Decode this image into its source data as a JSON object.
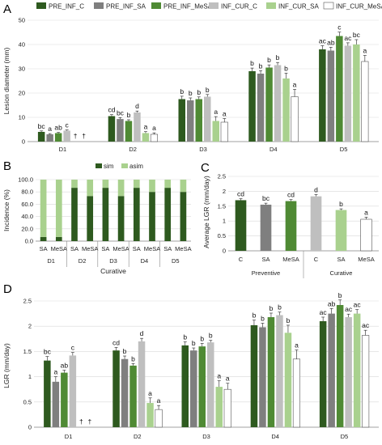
{
  "panels": {
    "A": "A",
    "B": "B",
    "C": "C",
    "D": "D"
  },
  "colors": {
    "PRE_INF_C": "#2e5a1f",
    "PRE_INF_SA": "#7f7f7f",
    "PRE_INF_MeSA": "#4f8a34",
    "INF_CUR_C": "#bfbfbf",
    "INF_CUR_SA": "#a9d18e",
    "INF_CUR_MeSA": "#ffffff",
    "sim": "#2e5a1f",
    "asim": "#a9d18e"
  },
  "chart_data": [
    {
      "panel": "A",
      "type": "bar",
      "ylabel": "Lesion diameter (mm)",
      "ylim": [
        0,
        50
      ],
      "yticks": [
        "0",
        "10",
        "20",
        "30",
        "40",
        "50"
      ],
      "categories": [
        "D1",
        "D2",
        "D3",
        "D4",
        "D5"
      ],
      "legend": [
        "PRE_INF_C",
        "PRE_INF_SA",
        "PRE_INF_MeSA",
        "INF_CUR_C",
        "INF_CUR_SA",
        "INF_CUR_MeSA"
      ],
      "legend_position": "top",
      "series": [
        {
          "name": "PRE_INF_C",
          "values": [
            4,
            10.5,
            17.5,
            29,
            38
          ],
          "errors": [
            0.4,
            0.6,
            1.2,
            1.3,
            1.5
          ],
          "letters": [
            "bc",
            "cd",
            "b",
            "b",
            "ac"
          ]
        },
        {
          "name": "PRE_INF_SA",
          "values": [
            3,
            9.3,
            17,
            28,
            37.5
          ],
          "errors": [
            0.3,
            0.6,
            1.0,
            1.2,
            1.4
          ],
          "letters": [
            "a",
            "bc",
            "b",
            "b",
            "ab"
          ]
        },
        {
          "name": "PRE_INF_MeSA",
          "values": [
            3.5,
            8.5,
            17.5,
            30.5,
            43.5
          ],
          "errors": [
            0.3,
            0.5,
            0.9,
            1.1,
            1.6
          ],
          "letters": [
            "ab",
            "b",
            "b",
            "b",
            "c"
          ]
        },
        {
          "name": "INF_CUR_C",
          "values": [
            4.5,
            12,
            18.5,
            31.5,
            39.5
          ],
          "errors": [
            0.3,
            0.6,
            0.9,
            1.1,
            1.2
          ],
          "letters": [
            "c",
            "d",
            "b",
            "b",
            "ac"
          ]
        },
        {
          "name": "INF_CUR_SA",
          "values": [
            null,
            3.5,
            8.5,
            26,
            40
          ],
          "errors": [
            0,
            0.6,
            1.8,
            2.2,
            2.0
          ],
          "letters": [
            "†",
            "a",
            "a",
            "b",
            "bc"
          ]
        },
        {
          "name": "INF_CUR_MeSA",
          "values": [
            null,
            3,
            8,
            18.5,
            33
          ],
          "errors": [
            0,
            0.6,
            1.5,
            3.0,
            2.5
          ],
          "letters": [
            "†",
            "a",
            "a",
            "a",
            "a"
          ]
        }
      ]
    },
    {
      "panel": "B",
      "type": "bar",
      "stacked": true,
      "ylabel": "Incidence (%)",
      "ylim": [
        0,
        100
      ],
      "yticks": [
        "0.0",
        "20.0",
        "40.0",
        "60.0",
        "80.0",
        "100.0"
      ],
      "categories": [
        "SA",
        "MeSA",
        "SA",
        "MeSA",
        "SA",
        "MeSA",
        "SA",
        "MeSA",
        "SA",
        "MeSA"
      ],
      "groups": [
        "D1",
        "D2",
        "D3",
        "D4",
        "D5"
      ],
      "xlabel": "Curative",
      "legend_position": "top",
      "series": [
        {
          "name": "sim",
          "values": [
            6.7,
            6.7,
            86.7,
            73.3,
            86.7,
            73.3,
            86.7,
            80,
            86.7,
            80
          ]
        },
        {
          "name": "asim",
          "values": [
            93.3,
            93.3,
            13.3,
            26.7,
            13.3,
            26.7,
            13.3,
            20,
            13.3,
            20
          ]
        }
      ]
    },
    {
      "panel": "C",
      "type": "bar",
      "ylabel": "Average LGR (mm/day)",
      "ylim": [
        0,
        2.5
      ],
      "yticks": [
        "0",
        "0.5",
        "1",
        "1.5",
        "2",
        "2.5"
      ],
      "categories": [
        "C",
        "SA",
        "MeSA",
        "C",
        "SA",
        "MeSA"
      ],
      "groups": [
        "Preventive",
        "Curative"
      ],
      "values": [
        1.7,
        1.55,
        1.67,
        1.83,
        1.37,
        1.06
      ],
      "errors": [
        0.05,
        0.05,
        0.05,
        0.06,
        0.04,
        0.07
      ],
      "letters": [
        "cd",
        "bc",
        "cd",
        "d",
        "b",
        "a"
      ],
      "bar_colors": [
        "#2e5a1f",
        "#7f7f7f",
        "#4f8a34",
        "#bfbfbf",
        "#a9d18e",
        "#ffffff"
      ]
    },
    {
      "panel": "D",
      "type": "bar",
      "ylabel": "LGR (mm/day)",
      "ylim": [
        0,
        2.5
      ],
      "yticks": [
        "0",
        "0.5",
        "1",
        "1.5",
        "2",
        "2.5"
      ],
      "categories": [
        "D1",
        "D2",
        "D3",
        "D4",
        "D5"
      ],
      "series": [
        {
          "name": "PRE_INF_C",
          "values": [
            1.32,
            1.52,
            1.62,
            2.02,
            2.1
          ],
          "errors": [
            0.08,
            0.06,
            0.07,
            0.1,
            0.08
          ],
          "letters": [
            "bc",
            "cd",
            "b",
            "b",
            "ac"
          ]
        },
        {
          "name": "PRE_INF_SA",
          "values": [
            0.9,
            1.35,
            1.52,
            1.98,
            2.25
          ],
          "errors": [
            0.1,
            0.06,
            0.05,
            0.08,
            0.1
          ],
          "letters": [
            "a",
            "b",
            "b",
            "b",
            "ab"
          ]
        },
        {
          "name": "PRE_INF_MeSA",
          "values": [
            1.08,
            1.22,
            1.6,
            2.18,
            2.42
          ],
          "errors": [
            0.05,
            0.04,
            0.06,
            0.08,
            0.1
          ],
          "letters": [
            "ab",
            "b",
            "b",
            "b",
            "b"
          ]
        },
        {
          "name": "INF_CUR_C",
          "values": [
            1.42,
            1.7,
            1.68,
            2.22,
            2.18
          ],
          "errors": [
            0.06,
            0.06,
            0.04,
            0.06,
            0.06
          ],
          "letters": [
            "c",
            "d",
            "b",
            "b",
            "ac"
          ]
        },
        {
          "name": "INF_CUR_SA",
          "values": [
            null,
            0.48,
            0.8,
            1.87,
            2.25
          ],
          "errors": [
            0,
            0.1,
            0.12,
            0.15,
            0.08
          ],
          "letters": [
            "†",
            "a",
            "a",
            "b",
            "ac"
          ]
        },
        {
          "name": "INF_CUR_MeSA",
          "values": [
            null,
            0.35,
            0.75,
            1.35,
            1.82
          ],
          "errors": [
            0,
            0.08,
            0.12,
            0.18,
            0.1
          ],
          "letters": [
            "†",
            "a",
            "a",
            "a",
            "ac"
          ]
        }
      ]
    }
  ]
}
